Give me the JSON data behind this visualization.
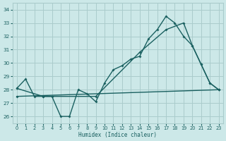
{
  "xlabel": "Humidex (Indice chaleur)",
  "xlim": [
    -0.5,
    23.5
  ],
  "ylim": [
    25.5,
    34.5
  ],
  "yticks": [
    26,
    27,
    28,
    29,
    30,
    31,
    32,
    33,
    34
  ],
  "xticks": [
    0,
    1,
    2,
    3,
    4,
    5,
    6,
    7,
    8,
    9,
    10,
    11,
    12,
    13,
    14,
    15,
    16,
    17,
    18,
    19,
    20,
    21,
    22,
    23
  ],
  "bg_color": "#cce8e8",
  "grid_color": "#aacccc",
  "line_color": "#1a6060",
  "line1_x": [
    0,
    1,
    2,
    3,
    4,
    5,
    6,
    7,
    8,
    9,
    10,
    11,
    12,
    13,
    14,
    15,
    16,
    17,
    18,
    19,
    20,
    21,
    22,
    23
  ],
  "line1_y": [
    28.1,
    28.8,
    27.5,
    27.5,
    27.5,
    26.0,
    26.0,
    28.0,
    27.7,
    27.1,
    28.5,
    29.5,
    29.8,
    30.3,
    30.5,
    31.8,
    32.5,
    33.5,
    33.0,
    32.0,
    31.3,
    29.9,
    28.5,
    28.0
  ],
  "line2_x": [
    0,
    3,
    9,
    14,
    17,
    19,
    20,
    21,
    22,
    23
  ],
  "line2_y": [
    28.1,
    27.5,
    27.5,
    30.8,
    32.5,
    33.0,
    31.3,
    29.9,
    28.5,
    28.0
  ],
  "line3_x": [
    0,
    23
  ],
  "line3_y": [
    27.5,
    28.0
  ]
}
